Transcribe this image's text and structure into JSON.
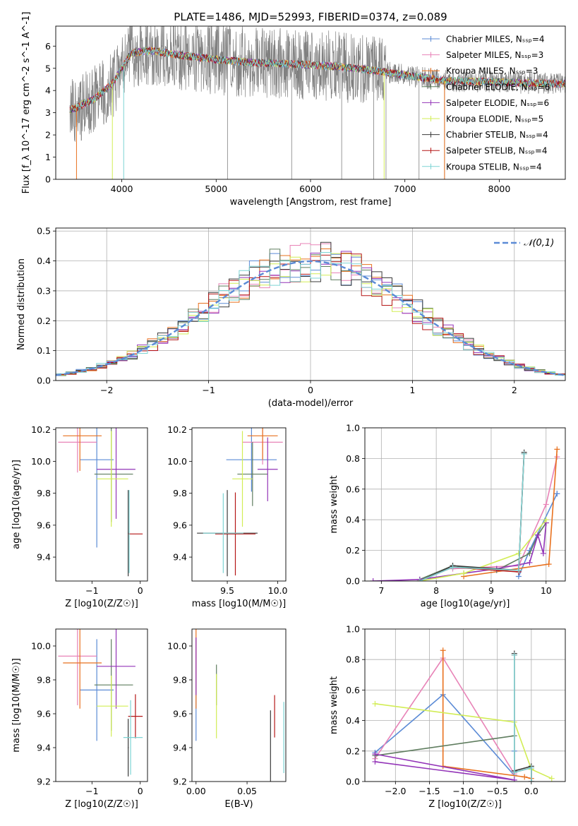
{
  "figure_title": "PLATE=1486, MJD=52993, FIBERID=0374, z=0.089",
  "colors": {
    "Chabrier MILES": "#5b8bd6",
    "Salpeter MILES": "#e883b7",
    "Kroupa MILES": "#e8711e",
    "Chabrier ELODIE": "#5f7d5f",
    "Salpeter ELODIE": "#9334b8",
    "Kroupa ELODIE": "#d2ed55",
    "Chabrier STELIB": "#3a3a3a",
    "Salpeter STELIB": "#b51717",
    "Kroupa STELIB": "#7dd4d4",
    "spectrum": "#808080",
    "normal_curve": "#5b8bd6"
  },
  "chart_data": [
    {
      "type": "line",
      "id": "spectrum",
      "title": "PLATE=1486, MJD=52993, FIBERID=0374, z=0.089",
      "xlabel": "wavelength [Angstrom, rest frame]",
      "ylabel": "Flux [f_λ 10^-17 erg cm^-2 s^-1 A^-1]",
      "xlim": [
        3300,
        8700
      ],
      "ylim": [
        0,
        6.9
      ],
      "xticks": [
        4000,
        5000,
        6000,
        7000,
        8000
      ],
      "yticks": [
        0,
        1,
        2,
        3,
        4,
        5,
        6
      ],
      "grid": false,
      "legend_position": "right",
      "data_range": [
        3450,
        8700
      ],
      "series": [
        {
          "name": "Chabrier MILES, N_SSP=4",
          "n_ssp": 4
        },
        {
          "name": "Salpeter MILES, N_SSP=3",
          "n_ssp": 3
        },
        {
          "name": "Kroupa MILES, N_SSP=3",
          "n_ssp": 3
        },
        {
          "name": "Chabrier ELODIE, N_SSP=6",
          "n_ssp": 6
        },
        {
          "name": "Salpeter ELODIE, N_SSP=6",
          "n_ssp": 6
        },
        {
          "name": "Kroupa ELODIE, N_SSP=5",
          "n_ssp": 5
        },
        {
          "name": "Chabrier STELIB, N_SSP=4",
          "n_ssp": 4
        },
        {
          "name": "Salpeter STELIB, N_SSP=4",
          "n_ssp": 4
        },
        {
          "name": "Kroupa STELIB, N_SSP=4",
          "n_ssp": 4
        }
      ],
      "continuum_points": [
        [
          3450,
          3.1
        ],
        [
          3700,
          3.6
        ],
        [
          3900,
          4.3
        ],
        [
          4000,
          5.0
        ],
        [
          4100,
          5.7
        ],
        [
          4300,
          5.8
        ],
        [
          4600,
          5.6
        ],
        [
          5000,
          5.4
        ],
        [
          5400,
          5.25
        ],
        [
          5800,
          5.2
        ],
        [
          6200,
          5.1
        ],
        [
          6600,
          4.95
        ],
        [
          7000,
          4.7
        ],
        [
          7400,
          4.45
        ],
        [
          7800,
          4.4
        ],
        [
          8200,
          4.35
        ],
        [
          8700,
          4.3
        ]
      ],
      "spectrum_noise": 1.0
    },
    {
      "type": "bar",
      "id": "residual-histogram",
      "xlabel": "(data-model)/error",
      "ylabel": "Normed distribution",
      "xlim": [
        -2.5,
        2.5
      ],
      "ylim": [
        0,
        0.51
      ],
      "xticks": [
        -2,
        -1,
        0,
        1,
        2
      ],
      "yticks": [
        0.0,
        0.1,
        0.2,
        0.3,
        0.4,
        0.5
      ],
      "grid": true,
      "legend_position": "upper right",
      "legend": "𝒩(0,1)",
      "bin_width": 0.1,
      "bin_start": -2.5,
      "histogram": "step, one per model",
      "normal_curve": {
        "mean": 0,
        "sigma": 1
      }
    },
    {
      "type": "scatter",
      "id": "age-vs-z",
      "xlabel": "Z [log10(Z/Z☉)]",
      "ylabel": "age  [log10(age/yr)]",
      "xlim": [
        -1.75,
        0.15
      ],
      "ylim": [
        9.25,
        10.21
      ],
      "xticks": [
        -1,
        0
      ],
      "yticks": [
        9.4,
        9.6,
        9.8,
        10.0,
        10.2
      ],
      "grid": false,
      "points": [
        {
          "model": "Chabrier MILES",
          "x": -0.9,
          "y": 10.01,
          "x_err": [
            0.35,
            0.35
          ],
          "y_err": [
            0.55,
            0.55
          ]
        },
        {
          "model": "Salpeter MILES",
          "x": -1.3,
          "y": 10.12,
          "x_err": [
            0.4,
            0.4
          ],
          "y_err": [
            0.19,
            0.19
          ]
        },
        {
          "model": "Kroupa MILES",
          "x": -1.25,
          "y": 10.16,
          "x_err": [
            0.35,
            0.45
          ],
          "y_err": [
            0.22,
            0.22
          ]
        },
        {
          "model": "Chabrier ELODIE",
          "x": -0.6,
          "y": 9.92,
          "x_err": [
            0.35,
            0.45
          ],
          "y_err": [
            0.3,
            0.3
          ]
        },
        {
          "model": "Salpeter ELODIE",
          "x": -0.5,
          "y": 9.95,
          "x_err": [
            0.4,
            0.4
          ],
          "y_err": [
            0.31,
            0.31
          ]
        },
        {
          "model": "Kroupa ELODIE",
          "x": -0.6,
          "y": 9.89,
          "x_err": [
            0.3,
            0.35
          ],
          "y_err": [
            0.3,
            0.3
          ]
        },
        {
          "model": "Chabrier STELIB",
          "x": -0.25,
          "y": 9.55,
          "x_err": [
            0.01,
            0.01
          ],
          "y_err": [
            0.27,
            0.27
          ]
        },
        {
          "model": "Salpeter STELIB",
          "x": -0.1,
          "y": 9.545,
          "x_err": [
            0.15,
            0.15
          ],
          "y_err": [
            0.0,
            0.0
          ]
        },
        {
          "model": "Kroupa STELIB",
          "x": -0.23,
          "y": 9.56,
          "x_err": [
            0.01,
            0.01
          ],
          "y_err": [
            0.26,
            0.26
          ]
        }
      ]
    },
    {
      "type": "scatter",
      "id": "age-vs-mass",
      "xlabel": "mass [log10(M/M☉)]",
      "ylabel": "",
      "xlim": [
        9.15,
        10.08
      ],
      "ylim": [
        9.25,
        10.21
      ],
      "xticks": [
        9.5,
        10.0
      ],
      "yticks": [
        9.4,
        9.6,
        9.8,
        10.0,
        10.2
      ],
      "grid": false,
      "points": [
        {
          "model": "Chabrier MILES",
          "x": 9.74,
          "y": 10.01,
          "x_err": [
            0.25,
            0.25
          ],
          "y_err": [
            0.2,
            0.2
          ]
        },
        {
          "model": "Salpeter MILES",
          "x": 9.85,
          "y": 10.12,
          "x_err": [
            0.2,
            0.2
          ],
          "y_err": [
            0.14,
            0.14
          ]
        },
        {
          "model": "Kroupa MILES",
          "x": 9.85,
          "y": 10.16,
          "x_err": [
            0.15,
            0.15
          ],
          "y_err": [
            0.15,
            0.15
          ]
        },
        {
          "model": "Chabrier ELODIE",
          "x": 9.75,
          "y": 9.92,
          "x_err": [
            0.15,
            0.15
          ],
          "y_err": [
            0.2,
            0.2
          ]
        },
        {
          "model": "Salpeter ELODIE",
          "x": 9.9,
          "y": 9.95,
          "x_err": [
            0.1,
            0.1
          ],
          "y_err": [
            0.2,
            0.2
          ]
        },
        {
          "model": "Kroupa ELODIE",
          "x": 9.65,
          "y": 9.89,
          "x_err": [
            0.1,
            0.1
          ],
          "y_err": [
            0.3,
            0.3
          ]
        },
        {
          "model": "Chabrier STELIB",
          "x": 9.5,
          "y": 9.55,
          "x_err": [
            0.3,
            0.3
          ],
          "y_err": [
            0.27,
            0.27
          ]
        },
        {
          "model": "Salpeter STELIB",
          "x": 9.58,
          "y": 9.545,
          "x_err": [
            0.2,
            0.2
          ],
          "y_err": [
            0.26,
            0.26
          ]
        },
        {
          "model": "Kroupa STELIB",
          "x": 9.46,
          "y": 9.55,
          "x_err": [
            0.2,
            0.2
          ],
          "y_err": [
            0.25,
            0.25
          ]
        }
      ]
    },
    {
      "type": "line",
      "id": "mass-weight-vs-age",
      "xlabel": "age  [log10(age/yr)]",
      "ylabel": "mass weight",
      "xlim": [
        6.7,
        10.35
      ],
      "ylim": [
        0,
        1
      ],
      "xticks": [
        7,
        8,
        9,
        10
      ],
      "yticks": [
        0.0,
        0.2,
        0.4,
        0.6,
        0.8,
        1.0
      ],
      "grid": true,
      "series": [
        {
          "name": "Chabrier MILES",
          "x": [
            9.5,
            9.7,
            10.2,
            10.2
          ],
          "y": [
            0.03,
            0.2,
            0.57,
            0.57
          ]
        },
        {
          "name": "Salpeter MILES",
          "x": [
            8.3,
            9.5,
            10.0,
            10.2
          ],
          "y": [
            0.08,
            0.1,
            0.5,
            0.81
          ]
        },
        {
          "name": "Kroupa MILES",
          "x": [
            8.5,
            10.05,
            10.2
          ],
          "y": [
            0.03,
            0.11,
            0.86
          ]
        },
        {
          "name": "Chabrier ELODIE",
          "x": [
            7.7,
            8.3,
            9.1,
            9.7,
            9.85,
            10.0
          ],
          "y": [
            0.01,
            0.1,
            0.07,
            0.18,
            0.3,
            0.38
          ]
        },
        {
          "name": "Salpeter ELODIE",
          "x": [
            6.85,
            7.7,
            8.5,
            9.1,
            9.7,
            9.85,
            9.95,
            10.0
          ],
          "y": [
            0.0,
            0.01,
            0.05,
            0.08,
            0.12,
            0.3,
            0.18,
            0.38
          ]
        },
        {
          "name": "Kroupa ELODIE",
          "x": [
            7.7,
            8.5,
            9.5,
            10.0
          ],
          "y": [
            0.0,
            0.05,
            0.18,
            0.4
          ]
        },
        {
          "name": "Chabrier STELIB",
          "x": [
            7.7,
            8.3,
            9.5,
            9.6
          ],
          "y": [
            0.0,
            0.1,
            0.07,
            0.84
          ]
        },
        {
          "name": "Salpeter STELIB",
          "x": [
            7.7,
            8.3,
            9.5,
            9.6
          ],
          "y": [
            0.0,
            0.09,
            0.06,
            0.83
          ]
        },
        {
          "name": "Kroupa STELIB",
          "x": [
            7.7,
            8.3,
            9.5,
            9.6
          ],
          "y": [
            0.0,
            0.09,
            0.07,
            0.83
          ]
        }
      ]
    },
    {
      "type": "scatter",
      "id": "mass-vs-z",
      "xlabel": "Z [log10(Z/Z☉)]",
      "ylabel": "mass [log10(M/M☉)]",
      "xlim": [
        -1.75,
        0.15
      ],
      "ylim": [
        9.2,
        10.1
      ],
      "xticks": [
        -1,
        0
      ],
      "yticks": [
        9.2,
        9.4,
        9.6,
        9.8,
        10.0
      ],
      "grid": false,
      "points": [
        {
          "model": "Chabrier MILES",
          "x": -0.9,
          "y": 9.74,
          "x_err": [
            0.35,
            0.35
          ],
          "y_err": [
            0.3,
            0.3
          ]
        },
        {
          "model": "Salpeter MILES",
          "x": -1.3,
          "y": 9.94,
          "x_err": [
            0.4,
            0.4
          ],
          "y_err": [
            0.29,
            0.29
          ]
        },
        {
          "model": "Kroupa MILES",
          "x": -1.25,
          "y": 9.9,
          "x_err": [
            0.35,
            0.45
          ],
          "y_err": [
            0.27,
            0.27
          ]
        },
        {
          "model": "Chabrier ELODIE",
          "x": -0.6,
          "y": 9.77,
          "x_err": [
            0.35,
            0.45
          ],
          "y_err": [
            0.27,
            0.27
          ]
        },
        {
          "model": "Salpeter ELODIE",
          "x": -0.5,
          "y": 9.88,
          "x_err": [
            0.4,
            0.4
          ],
          "y_err": [
            0.25,
            0.25
          ]
        },
        {
          "model": "Kroupa ELODIE",
          "x": -0.6,
          "y": 9.645,
          "x_err": [
            0.3,
            0.35
          ],
          "y_err": [
            0.18,
            0.18
          ]
        },
        {
          "model": "Chabrier STELIB",
          "x": -0.25,
          "y": 9.4,
          "x_err": [
            0.01,
            0.01
          ],
          "y_err": [
            0.17,
            0.17
          ]
        },
        {
          "model": "Salpeter STELIB",
          "x": -0.1,
          "y": 9.585,
          "x_err": [
            0.15,
            0.15
          ],
          "y_err": [
            0.13,
            0.13
          ]
        },
        {
          "model": "Kroupa STELIB",
          "x": -0.2,
          "y": 9.46,
          "x_err": [
            0.15,
            0.25
          ],
          "y_err": [
            0.22,
            0.22
          ]
        }
      ]
    },
    {
      "type": "scatter",
      "id": "mass-vs-ebv",
      "xlabel": "E(B-V)",
      "ylabel": "",
      "xlim": [
        -0.004,
        0.088
      ],
      "ylim": [
        9.2,
        10.1
      ],
      "xticks": [
        0.0,
        0.05
      ],
      "yticks": [
        9.2,
        9.4,
        9.6,
        9.8,
        10.0
      ],
      "grid": false,
      "points": [
        {
          "model": "Chabrier MILES",
          "x": 0.0,
          "y": 9.74,
          "x_err": [
            0,
            0
          ],
          "y_err": [
            0.3,
            0.3
          ]
        },
        {
          "model": "Salpeter MILES",
          "x": 0.0,
          "y": 9.94,
          "x_err": [
            0,
            0
          ],
          "y_err": [
            0.11,
            0.11
          ]
        },
        {
          "model": "Kroupa MILES",
          "x": 0.0,
          "y": 9.9,
          "x_err": [
            0,
            0
          ],
          "y_err": [
            0.27,
            0.27
          ]
        },
        {
          "model": "Chabrier ELODIE",
          "x": 0.02,
          "y": 9.77,
          "x_err": [
            0,
            0
          ],
          "y_err": [
            0.12,
            0.12
          ]
        },
        {
          "model": "Salpeter ELODIE",
          "x": 0.0,
          "y": 9.88,
          "x_err": [
            0,
            0
          ],
          "y_err": [
            0.17,
            0.17
          ]
        },
        {
          "model": "Kroupa ELODIE",
          "x": 0.02,
          "y": 9.645,
          "x_err": [
            0,
            0
          ],
          "y_err": [
            0.19,
            0.19
          ]
        },
        {
          "model": "Chabrier STELIB",
          "x": 0.073,
          "y": 9.4,
          "x_err": [
            0,
            0
          ],
          "y_err": [
            0.22,
            0.22
          ]
        },
        {
          "model": "Salpeter STELIB",
          "x": 0.077,
          "y": 9.585,
          "x_err": [
            0,
            0
          ],
          "y_err": [
            0.125,
            0.125
          ]
        },
        {
          "model": "Kroupa STELIB",
          "x": 0.086,
          "y": 9.46,
          "x_err": [
            0,
            0
          ],
          "y_err": [
            0.21,
            0.21
          ]
        }
      ]
    },
    {
      "type": "line",
      "id": "mass-weight-vs-z",
      "xlabel": "Z [log10(Z/Z☉)]",
      "ylabel": "mass weight",
      "xlim": [
        -2.45,
        0.5
      ],
      "ylim": [
        0,
        1
      ],
      "xticks": [
        -2.0,
        -1.5,
        -1.0,
        -0.5,
        0.0
      ],
      "yticks": [
        0.0,
        0.2,
        0.4,
        0.6,
        0.8,
        1.0
      ],
      "grid": true,
      "series": [
        {
          "name": "Chabrier MILES",
          "x": [
            -2.3,
            -1.3,
            -0.25,
            -0.25
          ],
          "y": [
            0.19,
            0.57,
            0.04,
            0.2
          ]
        },
        {
          "name": "Salpeter MILES",
          "x": [
            -2.3,
            -1.3,
            -0.25
          ],
          "y": [
            0.15,
            0.81,
            0.05
          ]
        },
        {
          "name": "Kroupa MILES",
          "x": [
            -1.3,
            -1.3,
            -0.1,
            0.0
          ],
          "y": [
            0.86,
            0.1,
            0.03,
            0.02
          ]
        },
        {
          "name": "Chabrier ELODIE",
          "x": [
            -2.3,
            -0.25
          ],
          "y": [
            0.17,
            0.3
          ]
        },
        {
          "name": "Salpeter ELODIE",
          "x": [
            -2.3,
            -0.25,
            -2.3
          ],
          "y": [
            0.13,
            0.01,
            0.18
          ]
        },
        {
          "name": "Kroupa ELODIE",
          "x": [
            -2.3,
            -0.25,
            0.0,
            0.3
          ],
          "y": [
            0.51,
            0.39,
            0.08,
            0.02
          ]
        },
        {
          "name": "Chabrier STELIB",
          "x": [
            -0.25,
            -0.25,
            0.0,
            0.0
          ],
          "y": [
            0.84,
            0.07,
            0.1,
            0.0
          ]
        },
        {
          "name": "Salpeter STELIB",
          "x": [
            -0.25,
            -0.25,
            0.0,
            0.0
          ],
          "y": [
            0.83,
            0.06,
            0.09,
            0.0
          ]
        },
        {
          "name": "Kroupa STELIB",
          "x": [
            -0.25,
            -0.25,
            0.0,
            0.0
          ],
          "y": [
            0.83,
            0.06,
            0.09,
            0.0
          ]
        }
      ]
    }
  ]
}
